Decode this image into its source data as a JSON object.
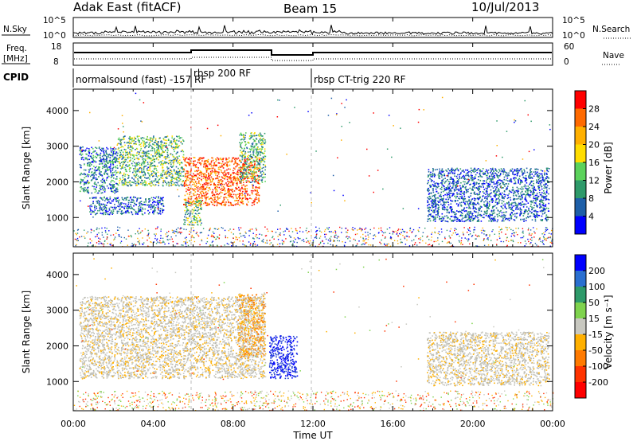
{
  "header": {
    "station": "Adak East (fitACF)",
    "beam": "Beam 15",
    "date": "10/Jul/2013"
  },
  "side_labels": {
    "nsky": "N.Sky",
    "nsearch": "N.Search",
    "freq_line1": "Freq.",
    "freq_line2": "[MHz]",
    "nave": "Nave",
    "cpid": "CPID",
    "nsky_ticks": [
      "10^5",
      "10^0"
    ],
    "nsearch_ticks": [
      "10^5",
      "10^0"
    ],
    "freq_ticks": [
      "18",
      "8"
    ],
    "nave_ticks": [
      "60",
      "0"
    ]
  },
  "cpid_segments": [
    {
      "label": "normalsound (fast) -157 RF",
      "start_hour": 0.0
    },
    {
      "label": "rbsp 200 RF",
      "start_hour": 6.0
    },
    {
      "label": "rbsp CT-trig 220 RF",
      "start_hour": 11.9
    }
  ],
  "chart_data": [
    {
      "type": "heatmap",
      "panel": "power",
      "ylabel": "Slant Range [km]",
      "ylim": [
        180,
        4600
      ],
      "yticks": [
        1000,
        2000,
        3000,
        4000
      ],
      "xlabel": "",
      "x_ticks": [
        "00:00",
        "04:00",
        "08:00",
        "12:00",
        "16:00",
        "20:00",
        "00:00"
      ],
      "x_tick_hours": [
        0,
        4,
        8,
        12,
        16,
        20,
        24
      ],
      "colorbar": {
        "label": "Power [dB]",
        "ticks": [
          "28",
          "24",
          "20",
          "16",
          "12",
          "8",
          "4"
        ],
        "colors": [
          "#ff0000",
          "#ff6a00",
          "#ffb000",
          "#ffdd00",
          "#5bd25b",
          "#2e9a6a",
          "#1e5fa8",
          "#0000ff"
        ]
      },
      "features": [
        {
          "hour_range": [
            0.3,
            2.2
          ],
          "range_km": [
            1700,
            3000
          ],
          "level": "low-moderate"
        },
        {
          "hour_range": [
            2.2,
            5.5
          ],
          "range_km": [
            1900,
            3300
          ],
          "level": "moderate"
        },
        {
          "hour_range": [
            5.5,
            9.3
          ],
          "range_km": [
            1350,
            2700
          ],
          "level": "high"
        },
        {
          "hour_range": [
            8.3,
            9.6
          ],
          "range_km": [
            2000,
            3400
          ],
          "level": "moderate"
        },
        {
          "hour_range": [
            0.8,
            4.5
          ],
          "range_km": [
            1100,
            1600
          ],
          "level": "low"
        },
        {
          "hour_range": [
            5.5,
            6.4
          ],
          "range_km": [
            800,
            1500
          ],
          "level": "moderate"
        },
        {
          "hour_range": [
            17.7,
            23.8
          ],
          "range_km": [
            900,
            2400
          ],
          "level": "low"
        }
      ]
    },
    {
      "type": "heatmap",
      "panel": "velocity",
      "ylabel": "Slant Range [km]",
      "ylim": [
        180,
        4600
      ],
      "yticks": [
        1000,
        2000,
        3000,
        4000
      ],
      "xlabel": "Time UT",
      "x_ticks": [
        "00:00",
        "04:00",
        "08:00",
        "12:00",
        "16:00",
        "20:00",
        "00:00"
      ],
      "x_tick_hours": [
        0,
        4,
        8,
        12,
        16,
        20,
        24
      ],
      "colorbar": {
        "label": "Velocity [m s⁻¹]",
        "ticks": [
          "200",
          "100",
          "50",
          "15",
          "-15",
          "-50",
          "-100",
          "-200"
        ],
        "colors": [
          "#0000ff",
          "#2a6fd0",
          "#2e9a6a",
          "#7fd34e",
          "#c8c8c0",
          "#ffb000",
          "#ff7a00",
          "#ff3300",
          "#ff0000"
        ]
      },
      "features": [
        {
          "hour_range": [
            0.3,
            9.6
          ],
          "range_km": [
            1100,
            3400
          ],
          "velocity": "near zero (ground scatter)"
        },
        {
          "hour_range": [
            8.2,
            9.6
          ],
          "range_km": [
            1700,
            3500
          ],
          "velocity": "-15 to -50"
        },
        {
          "hour_range": [
            9.8,
            11.2
          ],
          "range_km": [
            1100,
            2300
          ],
          "velocity": "> 200"
        },
        {
          "hour_range": [
            17.7,
            23.8
          ],
          "range_km": [
            900,
            2400
          ],
          "velocity": "near zero"
        }
      ]
    }
  ]
}
